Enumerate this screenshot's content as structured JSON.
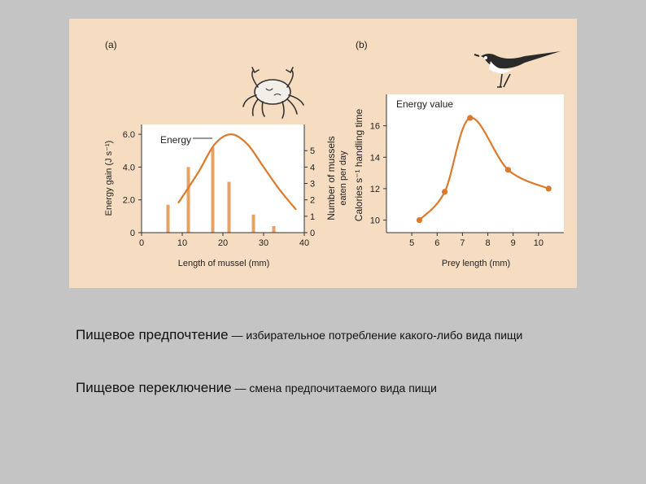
{
  "chart_data": [
    {
      "type": "bar+line",
      "panel_label": "(a)",
      "xlabel": "Length of mussel (mm)",
      "ylabel_left": "Energy gain (J s⁻¹)",
      "ylabel_right_1": "Number of mussels",
      "ylabel_right_2": "eaten per day",
      "xlim": [
        0,
        40
      ],
      "ylim_left": [
        0,
        6.6
      ],
      "ylim_right": [
        0,
        6.6
      ],
      "x_ticks": [
        "0",
        "10",
        "20",
        "30",
        "40"
      ],
      "y_ticks_left": [
        "0",
        "2.0",
        "4.0",
        "6.0"
      ],
      "y_ticks_right": [
        "0",
        "1",
        "2",
        "3",
        "4",
        "5"
      ],
      "bars": {
        "x": [
          6.5,
          11.5,
          17.5,
          21.5,
          27.5,
          32.5
        ],
        "values": [
          1.7,
          4.0,
          5.2,
          3.1,
          1.1,
          0.4
        ]
      },
      "line": {
        "name": "Energy",
        "x": [
          9,
          14,
          18,
          22,
          26,
          30,
          34,
          38
        ],
        "y": [
          1.8,
          3.7,
          5.4,
          6.0,
          5.4,
          4.0,
          2.6,
          1.4
        ]
      }
    },
    {
      "type": "line",
      "panel_label": "(b)",
      "xlabel": "Prey length (mm)",
      "ylabel_1": "Calories s⁻¹ handling time",
      "series_label": "Energy value",
      "xlim": [
        4,
        11
      ],
      "ylim": [
        9.2,
        18
      ],
      "x_ticks": [
        "5",
        "6",
        "7",
        "8",
        "9",
        "10"
      ],
      "y_ticks": [
        "10",
        "12",
        "14",
        "16"
      ],
      "x": [
        5.3,
        6.3,
        7.3,
        8.8,
        10.4
      ],
      "y": [
        10.0,
        11.8,
        16.5,
        13.2,
        12.0
      ]
    }
  ],
  "captions": {
    "line1_term": "Пищевое предпочтение",
    "line1_rest": " — избирательное потребление какого-либо вида пищи",
    "line2_term": "Пищевое переключение",
    "line2_rest": " — смена предпочитаемого вида пищи"
  },
  "colors": {
    "accent": "#dc7a2b",
    "bar": "#e8a265",
    "background": "#f6dcc0",
    "plot_area": "#ffffff"
  },
  "icons": [
    "crab-icon",
    "bird-icon"
  ]
}
